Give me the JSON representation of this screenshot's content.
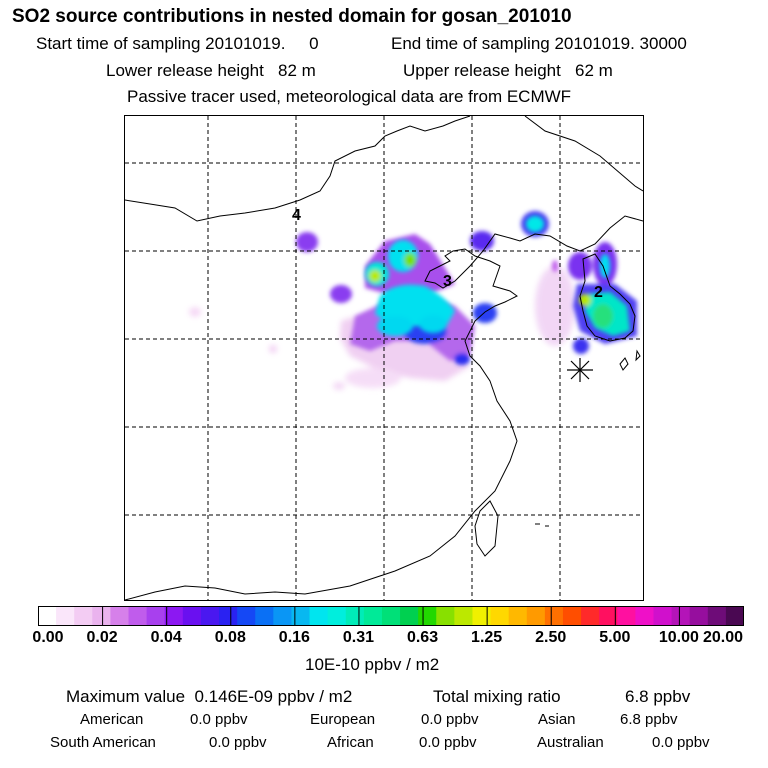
{
  "header": {
    "title": "SO2 source contributions in nested domain for gosan_201010",
    "start_label": "Start time of sampling 20101019.     0",
    "end_label": "End time of sampling 20101019. 30000",
    "lower_label": "Lower release height   82 m",
    "upper_label": "Upper release height   62 m",
    "note": "Passive tracer used, meteorological data are from ECMWF"
  },
  "map": {
    "labels": [
      {
        "text": "4",
        "x": 296,
        "y": 213
      },
      {
        "text": "3",
        "x": 447,
        "y": 279
      },
      {
        "text": "2",
        "x": 598,
        "y": 290
      }
    ],
    "station_marker": "asterisk-icon"
  },
  "colorbar": {
    "ticks": [
      "0.00",
      "0.02",
      "0.04",
      "0.08",
      "0.16",
      "0.31",
      "0.63",
      "1.25",
      "2.50",
      "5.00",
      "10.00",
      "20.00"
    ],
    "unit": "10E-10 ppbv / m2",
    "colors": [
      "#ffffff",
      "#fae6fa",
      "#f3ccf3",
      "#eab3ee",
      "#d680ea",
      "#c05cec",
      "#a840ee",
      "#8c18f2",
      "#6a10f0",
      "#4a18f0",
      "#2a22f2",
      "#1548f5",
      "#0a70f5",
      "#0a96f5",
      "#08b8f0",
      "#00e5ef",
      "#00eedd",
      "#00ecb8",
      "#00ea98",
      "#00e078",
      "#00d050",
      "#22d800",
      "#88e000",
      "#bce800",
      "#f0f000",
      "#ffd800",
      "#ffb800",
      "#ff9a00",
      "#ff7000",
      "#ff4e00",
      "#ff2a2a",
      "#ff1060",
      "#ff10a0",
      "#ef10c8",
      "#d010cc",
      "#b414b8",
      "#960e9e",
      "#6e0c78",
      "#4a0852"
    ]
  },
  "summary": {
    "max_label": "Maximum value  0.146E-09 ppbv / m2",
    "total_label": "Total mixing ratio",
    "total_value": "6.8 ppbv",
    "regions": [
      {
        "name": "American",
        "value": "0.0 ppbv"
      },
      {
        "name": "European",
        "value": "0.0 ppbv"
      },
      {
        "name": "Asian",
        "value": "6.8 ppbv"
      },
      {
        "name": "South American",
        "value": "0.0 ppbv"
      },
      {
        "name": "African",
        "value": "0.0 ppbv"
      },
      {
        "name": "Australian",
        "value": "0.0 ppbv"
      }
    ]
  }
}
